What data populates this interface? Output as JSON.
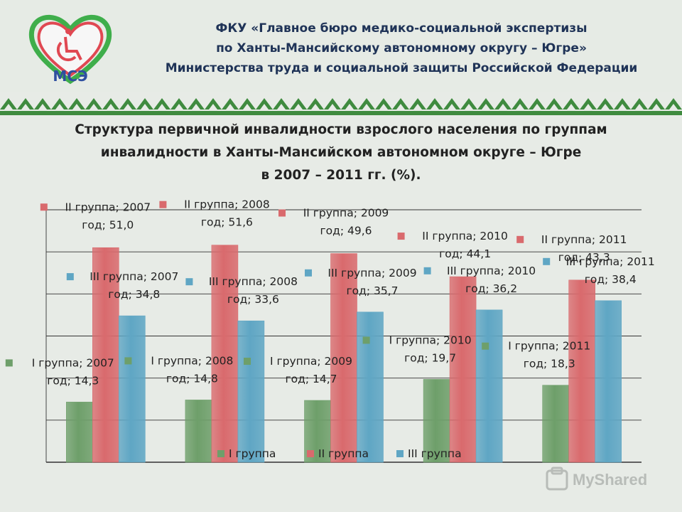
{
  "header": {
    "logo_text": "МСЭ",
    "org_lines": [
      "ФКУ «Главное бюро медико-социальной экспертизы",
      "по Ханты-Мансийскому автономному округу – Югре»",
      "Министерства труда и социальной защиты Российской Федерации"
    ]
  },
  "watermark": "MyShared",
  "colors": {
    "group1": "#6e9f6a",
    "group2": "#d96a6d",
    "group3": "#5fa6c4",
    "header_text": "#1f3357",
    "pattern_green": "#3f8b3f"
  },
  "chart_data": {
    "type": "bar",
    "title": "Структура первичной инвалидности взрослого населения по группам",
    "title_lines": [
      "Структура первичной инвалидности взрослого населения по группам",
      "инвалидности в Ханты-Мансийском автономном округе – Югре",
      "в 2007 – 2011 гг. (%)."
    ],
    "categories": [
      "2007 год",
      "2008 год",
      "2009 год",
      "2010 год",
      "2011 год"
    ],
    "series": [
      {
        "name": "I группа",
        "values": [
          14.3,
          14.8,
          14.7,
          19.7,
          18.3
        ],
        "value_labels": [
          "14,3",
          "14,8",
          "14,7",
          "19,7",
          "18,3"
        ]
      },
      {
        "name": "II группа",
        "values": [
          51.0,
          51.6,
          49.6,
          44.1,
          43.3
        ],
        "value_labels": [
          "51,0",
          "51,6",
          "49,6",
          "44,1",
          "43,3"
        ]
      },
      {
        "name": "III группа",
        "values": [
          34.8,
          33.6,
          35.7,
          36.2,
          38.4
        ],
        "value_labels": [
          "34,8",
          "33,6",
          "35,7",
          "36,2",
          "38,4"
        ]
      }
    ],
    "ylim": [
      0,
      60
    ],
    "grid": true,
    "legend": "bottom",
    "xlabel": "",
    "ylabel": ""
  }
}
